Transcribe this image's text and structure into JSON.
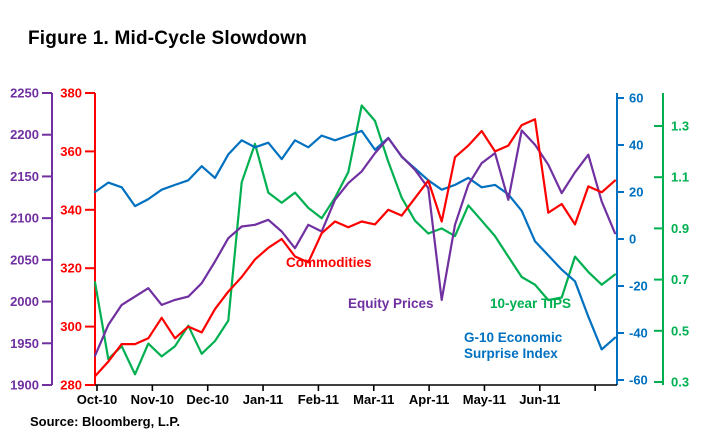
{
  "title": "Figure 1. Mid-Cycle Slowdown",
  "source": "Source: Bloomberg, L.P.",
  "chart_data": {
    "type": "line",
    "title": "Figure 1. Mid-Cycle Slowdown",
    "x_labels": [
      "Oct-10",
      "Nov-10",
      "Dec-10",
      "Jan-11",
      "Feb-11",
      "Mar-11",
      "Apr-11",
      "May-11",
      "Jun-11"
    ],
    "x_unit": "weekly samples, Oct-2010 through early Jul-2011",
    "grid": false,
    "legend": "in-plot colored text labels",
    "axes": {
      "equity": {
        "side": "left-outer",
        "color": "#7030A0",
        "range": [
          1900,
          2250
        ],
        "ticks": [
          1900,
          1950,
          2000,
          2050,
          2100,
          2150,
          2200,
          2250
        ]
      },
      "commodities": {
        "side": "left-inner",
        "color": "#FF0000",
        "range": [
          280,
          380
        ],
        "ticks": [
          280,
          300,
          320,
          340,
          360,
          380
        ]
      },
      "surprise": {
        "side": "right-inner",
        "color": "#0070C0",
        "range": [
          -60,
          60
        ],
        "ticks": [
          -60,
          -40,
          -20,
          0,
          20,
          40,
          60
        ]
      },
      "tips": {
        "side": "right-outer",
        "color": "#00B050",
        "range": [
          0.3,
          1.3
        ],
        "ticks": [
          0.3,
          0.5,
          0.7,
          0.9,
          1.1,
          1.3
        ]
      }
    },
    "series": [
      {
        "name": "10-year TIPS",
        "axis": "tips",
        "color": "#00B050",
        "values": [
          0.69,
          0.39,
          0.44,
          0.33,
          0.45,
          0.4,
          0.44,
          0.52,
          0.41,
          0.46,
          0.54,
          1.08,
          1.23,
          1.04,
          1.0,
          1.04,
          0.98,
          0.94,
          1.02,
          1.12,
          1.38,
          1.32,
          1.16,
          1.02,
          0.93,
          0.88,
          0.9,
          0.87,
          0.99,
          0.93,
          0.87,
          0.79,
          0.71,
          0.68,
          0.62,
          0.63,
          0.79,
          0.73,
          0.68,
          0.72
        ]
      },
      {
        "name": "G-10 Economic Surprise Index",
        "axis": "surprise",
        "color": "#0070C0",
        "values": [
          20,
          24,
          22,
          14,
          17,
          21,
          23,
          25,
          31,
          26,
          36,
          42,
          39,
          41,
          34,
          42,
          39,
          44,
          42,
          44,
          46,
          38,
          43,
          35,
          30,
          25,
          21,
          23,
          26,
          22,
          23,
          19,
          12,
          -1,
          -7,
          -13,
          -18,
          -33,
          -47,
          -42
        ]
      },
      {
        "name": "Equity Prices",
        "axis": "equity",
        "color": "#7030A0",
        "values": [
          1935,
          1972,
          1996,
          2006,
          2016,
          1996,
          2002,
          2006,
          2022,
          2048,
          2076,
          2090,
          2092,
          2098,
          2084,
          2064,
          2092,
          2084,
          2122,
          2142,
          2156,
          2178,
          2196,
          2174,
          2158,
          2136,
          2002,
          2092,
          2140,
          2166,
          2178,
          2122,
          2205,
          2188,
          2164,
          2130,
          2155,
          2176,
          2120,
          2082
        ]
      },
      {
        "name": "Commodities",
        "axis": "commodities",
        "color": "#FF0000",
        "values": [
          283,
          288,
          294,
          294,
          296,
          303,
          296,
          300,
          298,
          306,
          312,
          317,
          323,
          327,
          330,
          324,
          322,
          332,
          336,
          334,
          336,
          335,
          340,
          338,
          344,
          350,
          336,
          358,
          362,
          367,
          360,
          362,
          369,
          371,
          339,
          342,
          335,
          348,
          346,
          350
        ]
      }
    ]
  }
}
